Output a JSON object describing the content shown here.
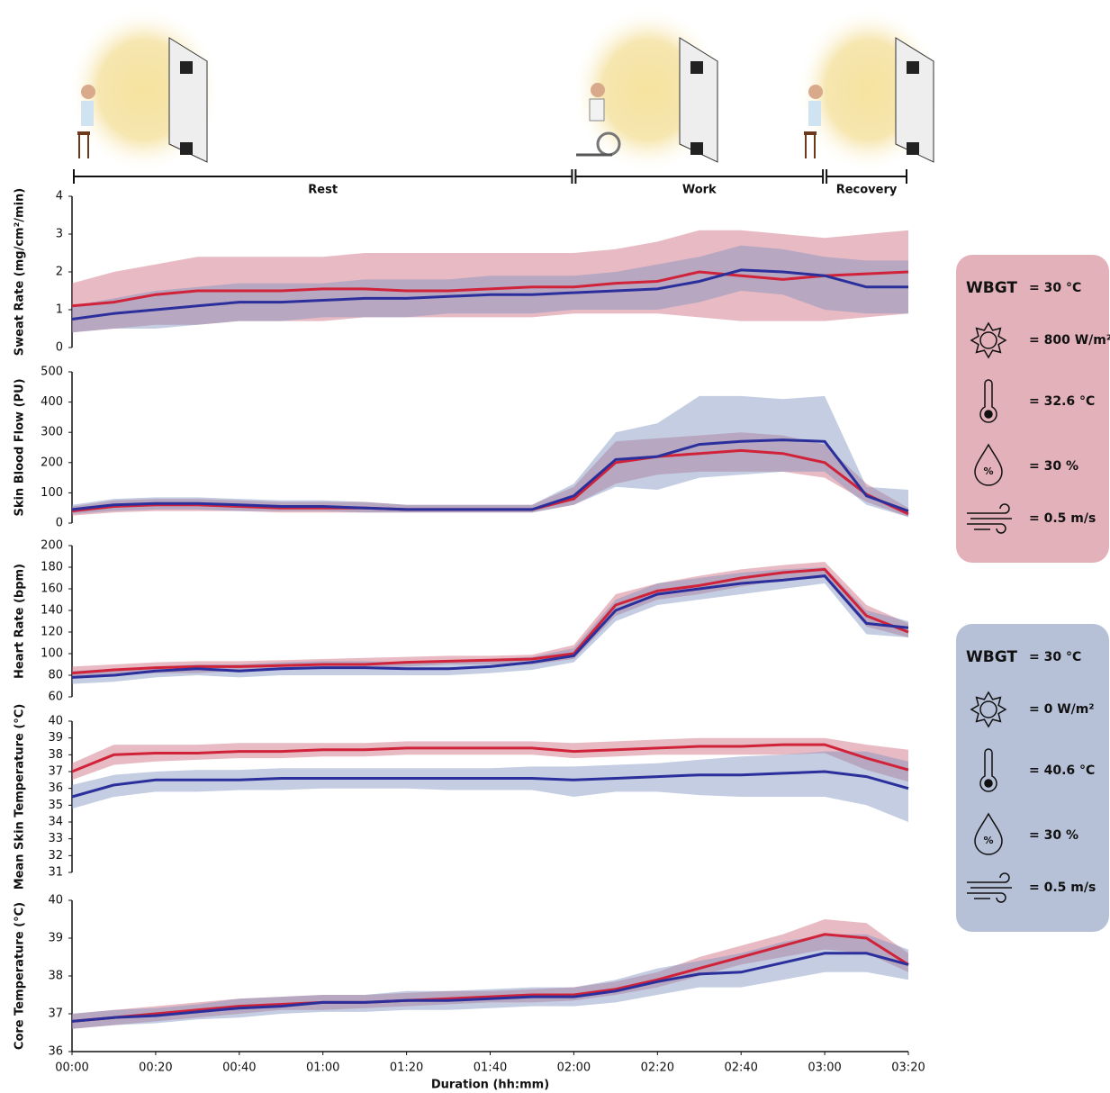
{
  "phases": [
    {
      "label": "Rest",
      "start": 0,
      "end": 120
    },
    {
      "label": "Work",
      "start": 120,
      "end": 180
    },
    {
      "label": "Recovery",
      "start": 180,
      "end": 200
    }
  ],
  "conditions": [
    {
      "label": "WBGT",
      "color": "#e3b1ba",
      "humidity_icon": "%",
      "rows": [
        "= 30 °C",
        "= 800 W/m²",
        "= 32.6 °C",
        "= 30 %",
        "= 0.5 m/s"
      ]
    },
    {
      "label": "WBGT",
      "color": "#b6c1d8",
      "humidity_icon": "%",
      "rows": [
        "= 30 °C",
        "= 0 W/m²",
        "= 40.6 °C",
        "= 30 %",
        "= 0.5 m/s"
      ]
    }
  ],
  "chart_data": [
    {
      "type": "line",
      "ylabel": "Sweat Rate (mg/cm²/min)",
      "xlim": [
        0,
        200
      ],
      "ylim": [
        0,
        4
      ],
      "yticks": [
        0,
        1,
        2,
        3,
        4
      ],
      "x": [
        0,
        10,
        20,
        30,
        40,
        50,
        60,
        70,
        80,
        90,
        100,
        110,
        120,
        130,
        140,
        150,
        160,
        170,
        180,
        190,
        200
      ],
      "series": [
        {
          "color": "#d0233a",
          "band_color": "rgba(205,105,125,0.45)",
          "values": [
            1.1,
            1.2,
            1.4,
            1.5,
            1.5,
            1.5,
            1.55,
            1.55,
            1.5,
            1.5,
            1.55,
            1.6,
            1.6,
            1.7,
            1.75,
            2.0,
            1.9,
            1.8,
            1.9,
            1.95,
            2.0
          ],
          "lower": [
            0.4,
            0.5,
            0.6,
            0.6,
            0.7,
            0.7,
            0.7,
            0.8,
            0.8,
            0.8,
            0.8,
            0.8,
            0.9,
            0.9,
            0.9,
            0.8,
            0.7,
            0.7,
            0.7,
            0.8,
            0.9
          ],
          "upper": [
            1.7,
            2.0,
            2.2,
            2.4,
            2.4,
            2.4,
            2.4,
            2.5,
            2.5,
            2.5,
            2.5,
            2.5,
            2.5,
            2.6,
            2.8,
            3.1,
            3.1,
            3.0,
            2.9,
            3.0,
            3.1
          ]
        },
        {
          "color": "#2b2f9b",
          "band_color": "rgba(125,145,190,0.45)",
          "values": [
            0.75,
            0.9,
            1.0,
            1.1,
            1.2,
            1.2,
            1.25,
            1.3,
            1.3,
            1.35,
            1.4,
            1.4,
            1.45,
            1.5,
            1.55,
            1.75,
            2.05,
            2.0,
            1.9,
            1.6,
            1.6
          ],
          "lower": [
            0.4,
            0.5,
            0.5,
            0.6,
            0.7,
            0.7,
            0.8,
            0.8,
            0.8,
            0.9,
            0.9,
            0.9,
            1.0,
            1.0,
            1.0,
            1.2,
            1.5,
            1.4,
            1.0,
            0.9,
            0.9
          ],
          "upper": [
            1.1,
            1.3,
            1.5,
            1.6,
            1.7,
            1.7,
            1.7,
            1.8,
            1.8,
            1.8,
            1.9,
            1.9,
            1.9,
            2.0,
            2.2,
            2.4,
            2.7,
            2.6,
            2.4,
            2.3,
            2.3
          ]
        }
      ]
    },
    {
      "type": "line",
      "ylabel": "Skin Blood Flow (PU)",
      "xlim": [
        0,
        200
      ],
      "ylim": [
        0,
        500
      ],
      "yticks": [
        0,
        100,
        200,
        300,
        400,
        500
      ],
      "x": [
        0,
        10,
        20,
        30,
        40,
        50,
        60,
        70,
        80,
        90,
        100,
        110,
        120,
        130,
        140,
        150,
        160,
        170,
        180,
        190,
        200
      ],
      "series": [
        {
          "color": "#d0233a",
          "band_color": "rgba(205,105,125,0.45)",
          "values": [
            40,
            55,
            60,
            60,
            55,
            50,
            50,
            50,
            45,
            45,
            45,
            45,
            80,
            200,
            220,
            230,
            240,
            230,
            200,
            95,
            30
          ],
          "lower": [
            25,
            35,
            40,
            40,
            40,
            35,
            35,
            35,
            35,
            35,
            35,
            35,
            60,
            130,
            160,
            170,
            170,
            170,
            150,
            70,
            20
          ],
          "upper": [
            55,
            75,
            80,
            80,
            75,
            70,
            70,
            70,
            60,
            60,
            60,
            60,
            120,
            270,
            280,
            290,
            300,
            290,
            260,
            130,
            50
          ]
        },
        {
          "color": "#2b2f9b",
          "band_color": "rgba(125,145,190,0.45)",
          "values": [
            45,
            60,
            65,
            65,
            60,
            55,
            55,
            50,
            45,
            45,
            45,
            45,
            90,
            210,
            220,
            260,
            270,
            275,
            270,
            90,
            40
          ],
          "lower": [
            30,
            40,
            45,
            45,
            40,
            40,
            40,
            35,
            35,
            35,
            35,
            35,
            60,
            120,
            110,
            150,
            160,
            170,
            170,
            60,
            20
          ],
          "upper": [
            60,
            80,
            85,
            85,
            80,
            75,
            75,
            70,
            60,
            60,
            60,
            60,
            130,
            300,
            330,
            420,
            420,
            410,
            420,
            120,
            110
          ]
        }
      ]
    },
    {
      "type": "line",
      "ylabel": "Heart Rate (bpm)",
      "xlim": [
        0,
        200
      ],
      "ylim": [
        60,
        200
      ],
      "yticks": [
        60,
        80,
        100,
        120,
        140,
        160,
        180,
        200
      ],
      "x": [
        0,
        10,
        20,
        30,
        40,
        50,
        60,
        70,
        80,
        90,
        100,
        110,
        120,
        130,
        140,
        150,
        160,
        170,
        180,
        190,
        200
      ],
      "series": [
        {
          "color": "#d0233a",
          "band_color": "rgba(205,105,125,0.45)",
          "values": [
            82,
            85,
            87,
            88,
            88,
            89,
            90,
            90,
            92,
            93,
            94,
            95,
            100,
            145,
            158,
            163,
            170,
            175,
            178,
            135,
            120
          ],
          "lower": [
            78,
            80,
            82,
            82,
            84,
            85,
            86,
            86,
            88,
            90,
            90,
            90,
            95,
            135,
            150,
            155,
            162,
            168,
            170,
            125,
            115
          ],
          "upper": [
            88,
            90,
            92,
            93,
            93,
            94,
            95,
            96,
            97,
            98,
            98,
            99,
            108,
            155,
            165,
            172,
            178,
            182,
            185,
            145,
            128
          ]
        },
        {
          "color": "#2b2f9b",
          "band_color": "rgba(125,145,190,0.45)",
          "values": [
            78,
            80,
            84,
            86,
            84,
            86,
            87,
            87,
            86,
            86,
            88,
            92,
            98,
            140,
            155,
            160,
            165,
            168,
            172,
            128,
            124
          ],
          "lower": [
            72,
            74,
            78,
            80,
            78,
            80,
            80,
            80,
            80,
            80,
            82,
            85,
            92,
            130,
            145,
            150,
            155,
            160,
            165,
            118,
            115
          ],
          "upper": [
            84,
            86,
            88,
            90,
            90,
            92,
            93,
            93,
            92,
            93,
            95,
            97,
            105,
            150,
            165,
            170,
            175,
            178,
            180,
            140,
            130
          ]
        }
      ]
    },
    {
      "type": "line",
      "ylabel": "Mean Skin Temperature (°C)",
      "xlim": [
        0,
        200
      ],
      "ylim": [
        31,
        40
      ],
      "yticks": [
        31,
        32,
        33,
        34,
        35,
        36,
        37,
        38,
        39,
        40
      ],
      "x": [
        0,
        10,
        20,
        30,
        40,
        50,
        60,
        70,
        80,
        90,
        100,
        110,
        120,
        130,
        140,
        150,
        160,
        170,
        180,
        190,
        200
      ],
      "series": [
        {
          "color": "#d0233a",
          "band_color": "rgba(205,105,125,0.45)",
          "values": [
            37,
            38,
            38.1,
            38.1,
            38.2,
            38.2,
            38.3,
            38.3,
            38.4,
            38.4,
            38.4,
            38.4,
            38.2,
            38.3,
            38.4,
            38.5,
            38.5,
            38.6,
            38.6,
            37.8,
            37.1
          ],
          "lower": [
            36.5,
            37.4,
            37.6,
            37.7,
            37.8,
            37.8,
            37.9,
            37.9,
            38,
            38,
            38,
            38,
            37.8,
            37.9,
            38,
            38,
            38,
            38,
            38.1,
            37.1,
            36.4
          ],
          "upper": [
            37.5,
            38.6,
            38.6,
            38.6,
            38.7,
            38.7,
            38.7,
            38.7,
            38.8,
            38.8,
            38.8,
            38.8,
            38.7,
            38.8,
            38.9,
            39,
            39,
            39,
            39,
            38.6,
            38.3
          ]
        },
        {
          "color": "#2b2f9b",
          "band_color": "rgba(125,145,190,0.45)",
          "values": [
            35.5,
            36.2,
            36.5,
            36.5,
            36.5,
            36.6,
            36.6,
            36.6,
            36.6,
            36.6,
            36.6,
            36.6,
            36.5,
            36.6,
            36.7,
            36.8,
            36.8,
            36.9,
            37,
            36.7,
            36
          ],
          "lower": [
            34.8,
            35.5,
            35.8,
            35.8,
            35.9,
            35.9,
            36,
            36,
            36,
            35.9,
            35.9,
            35.9,
            35.5,
            35.8,
            35.8,
            35.6,
            35.5,
            35.5,
            35.5,
            35,
            34
          ],
          "upper": [
            36.2,
            36.8,
            37,
            37.1,
            37.1,
            37.2,
            37.2,
            37.2,
            37.2,
            37.2,
            37.2,
            37.3,
            37.3,
            37.4,
            37.5,
            37.7,
            37.9,
            38,
            38.2,
            38.2,
            37.6
          ]
        }
      ]
    },
    {
      "type": "line",
      "ylabel": "Core Temperature (°C)",
      "xlabel": "Duration (hh:mm)",
      "xlim": [
        0,
        200
      ],
      "ylim": [
        36,
        40
      ],
      "yticks": [
        36,
        37,
        38,
        39,
        40
      ],
      "xticks": [
        {
          "value": 0,
          "label": "00:00"
        },
        {
          "value": 20,
          "label": "00:20"
        },
        {
          "value": 40,
          "label": "00:40"
        },
        {
          "value": 60,
          "label": "01:00"
        },
        {
          "value": 80,
          "label": "01:20"
        },
        {
          "value": 100,
          "label": "01:40"
        },
        {
          "value": 120,
          "label": "02:00"
        },
        {
          "value": 140,
          "label": "02:20"
        },
        {
          "value": 160,
          "label": "02:40"
        },
        {
          "value": 180,
          "label": "03:00"
        },
        {
          "value": 200,
          "label": "03:20"
        }
      ],
      "x": [
        0,
        10,
        20,
        30,
        40,
        50,
        60,
        70,
        80,
        90,
        100,
        110,
        120,
        130,
        140,
        150,
        160,
        170,
        180,
        190,
        200
      ],
      "series": [
        {
          "color": "#d0233a",
          "band_color": "rgba(205,105,125,0.45)",
          "values": [
            36.8,
            36.9,
            37,
            37.1,
            37.2,
            37.25,
            37.3,
            37.3,
            37.35,
            37.4,
            37.45,
            37.5,
            37.5,
            37.65,
            37.9,
            38.2,
            38.5,
            38.8,
            39.1,
            39,
            38.3
          ],
          "lower": [
            36.6,
            36.7,
            36.8,
            36.9,
            37,
            37.1,
            37.1,
            37.15,
            37.2,
            37.25,
            37.3,
            37.3,
            37.35,
            37.5,
            37.7,
            38,
            38.3,
            38.5,
            38.7,
            38.6,
            38.1
          ],
          "upper": [
            37,
            37.1,
            37.2,
            37.3,
            37.4,
            37.45,
            37.5,
            37.5,
            37.55,
            37.6,
            37.6,
            37.65,
            37.7,
            37.85,
            38.1,
            38.5,
            38.8,
            39.1,
            39.5,
            39.4,
            38.6
          ]
        },
        {
          "color": "#2b2f9b",
          "band_color": "rgba(125,145,190,0.45)",
          "values": [
            36.8,
            36.9,
            36.95,
            37.05,
            37.15,
            37.2,
            37.3,
            37.3,
            37.35,
            37.35,
            37.4,
            37.45,
            37.45,
            37.6,
            37.85,
            38.05,
            38.1,
            38.35,
            38.6,
            38.6,
            38.3
          ],
          "lower": [
            36.6,
            36.7,
            36.75,
            36.85,
            36.9,
            37,
            37.05,
            37.05,
            37.1,
            37.1,
            37.15,
            37.2,
            37.2,
            37.3,
            37.5,
            37.7,
            37.7,
            37.9,
            38.1,
            38.1,
            37.9
          ],
          "upper": [
            37,
            37.1,
            37.15,
            37.25,
            37.4,
            37.45,
            37.5,
            37.5,
            37.6,
            37.6,
            37.65,
            37.7,
            37.7,
            37.9,
            38.2,
            38.4,
            38.6,
            38.9,
            39.1,
            39.1,
            38.7
          ]
        }
      ]
    }
  ]
}
